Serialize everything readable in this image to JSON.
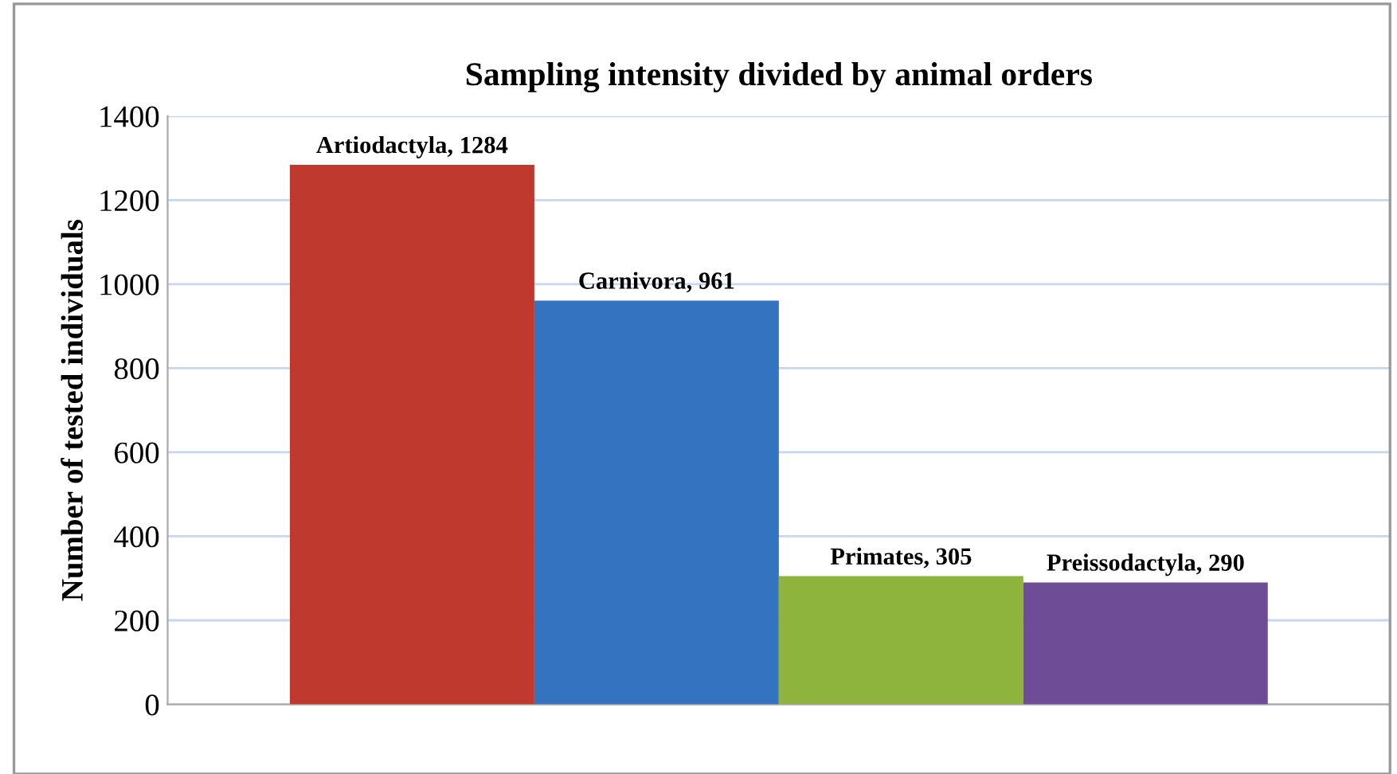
{
  "chart_data": {
    "type": "bar",
    "title": "Sampling intensity divided by animal orders",
    "ylabel": "Number of tested individuals",
    "categories": [
      null
    ],
    "series": [
      {
        "name": "Artiodactyla",
        "color": "#c0392f",
        "values": [
          1284
        ],
        "value_labels": [
          ", 1284"
        ]
      },
      {
        "name": "Carnivora",
        "color": "#3473c0",
        "values": [
          961
        ],
        "value_labels": [
          ", 961"
        ]
      },
      {
        "name": "Primates",
        "color": "#8fb43e",
        "values": [
          305
        ],
        "value_labels": [
          ", 305"
        ]
      },
      {
        "name": "Preissodactyla",
        "color": "#6e4c96",
        "values": [
          290
        ],
        "value_labels": [
          ", 290"
        ]
      }
    ],
    "ylim": [
      0,
      1400
    ],
    "yticks": [
      0,
      200,
      400,
      600,
      800,
      1000,
      1200,
      1400
    ],
    "grid": "y",
    "legend": false
  }
}
